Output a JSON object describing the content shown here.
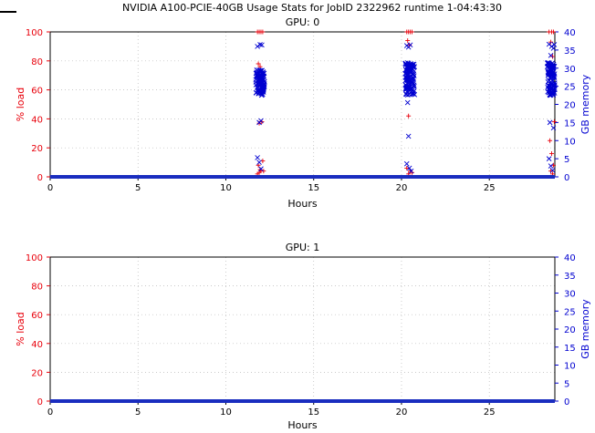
{
  "title": "NVIDIA A100-PCIE-40GB Usage Stats for JobID 2322962  runtime 1-04:43:30",
  "colors": {
    "load": "#e8000b",
    "memory": "#0000d0",
    "baseline": "#1a2dbf"
  },
  "chart_data": [
    {
      "type": "scatter",
      "subtitle": "GPU: 0",
      "xlabel": "Hours",
      "ylabel_left": "% load",
      "ylabel_right": "GB memory",
      "xlim": [
        0,
        28.73
      ],
      "ylim_left": [
        0,
        100
      ],
      "ylim_right": [
        0,
        40
      ],
      "x_ticks": [
        0,
        5,
        10,
        15,
        20,
        25
      ],
      "y_ticks_left": [
        0,
        20,
        40,
        60,
        80,
        100
      ],
      "y_ticks_right": [
        0,
        5,
        10,
        15,
        20,
        25,
        30,
        35,
        40
      ],
      "grid": true,
      "series": [
        {
          "marker": "plus",
          "axis": "left",
          "points": [
            [
              11.8,
              100
            ],
            [
              11.9,
              100
            ],
            [
              12.0,
              100
            ],
            [
              12.1,
              100
            ],
            [
              11.85,
              78
            ],
            [
              11.95,
              76
            ],
            [
              11.9,
              37
            ],
            [
              12.05,
              38
            ],
            [
              11.85,
              8
            ],
            [
              11.95,
              5
            ],
            [
              12.1,
              11
            ],
            [
              12.0,
              4
            ],
            [
              11.9,
              3
            ],
            [
              12.15,
              4
            ],
            [
              11.8,
              2
            ],
            [
              20.3,
              100
            ],
            [
              20.4,
              100
            ],
            [
              20.5,
              100
            ],
            [
              20.6,
              100
            ],
            [
              20.35,
              94
            ],
            [
              20.45,
              91
            ],
            [
              20.4,
              42
            ],
            [
              20.3,
              6
            ],
            [
              20.5,
              4
            ],
            [
              20.6,
              3
            ],
            [
              20.4,
              2
            ],
            [
              28.4,
              100
            ],
            [
              28.55,
              100
            ],
            [
              28.65,
              100
            ],
            [
              28.5,
              93
            ],
            [
              28.6,
              83
            ],
            [
              28.7,
              38
            ],
            [
              28.45,
              25
            ],
            [
              28.55,
              16
            ],
            [
              28.65,
              8
            ],
            [
              28.5,
              4
            ],
            [
              28.6,
              2
            ]
          ]
        },
        {
          "marker": "cross",
          "axis": "right",
          "points": [
            [
              11.8,
              36
            ],
            [
              11.95,
              36.5
            ],
            [
              12.05,
              36.4
            ],
            [
              11.9,
              15
            ],
            [
              12.0,
              15.5
            ],
            [
              11.8,
              5.3
            ],
            [
              11.9,
              4
            ],
            [
              12.0,
              2.2
            ],
            [
              20.3,
              36.2
            ],
            [
              20.4,
              35.8
            ],
            [
              20.5,
              36.4
            ],
            [
              20.35,
              20.5
            ],
            [
              20.4,
              11.2
            ],
            [
              20.3,
              3.6
            ],
            [
              20.45,
              2.4
            ],
            [
              20.55,
              1.6
            ],
            [
              28.4,
              36.6
            ],
            [
              28.55,
              36
            ],
            [
              28.65,
              35.5
            ],
            [
              28.7,
              36.5
            ],
            [
              28.5,
              33.5
            ],
            [
              28.6,
              30
            ],
            [
              28.45,
              15
            ],
            [
              28.65,
              13.5
            ],
            [
              28.4,
              5
            ],
            [
              28.5,
              3
            ],
            [
              28.6,
              1.8
            ]
          ],
          "clusters": [
            {
              "x_min": 11.7,
              "x_max": 12.2,
              "y_min": 22.5,
              "y_max": 29.5,
              "count": 110
            },
            {
              "x_min": 20.2,
              "x_max": 20.75,
              "y_min": 22.5,
              "y_max": 31.5,
              "count": 110
            },
            {
              "x_min": 28.3,
              "x_max": 28.73,
              "y_min": 22.5,
              "y_max": 31.5,
              "count": 110
            }
          ]
        },
        {
          "marker": "baseline",
          "axis": "left",
          "x_range": [
            0,
            28.73
          ],
          "value": 0
        }
      ]
    },
    {
      "type": "scatter",
      "subtitle": "GPU: 1",
      "xlabel": "Hours",
      "ylabel_left": "% load",
      "ylabel_right": "GB memory",
      "xlim": [
        0,
        28.73
      ],
      "ylim_left": [
        0,
        100
      ],
      "ylim_right": [
        0,
        40
      ],
      "x_ticks": [
        0,
        5,
        10,
        15,
        20,
        25
      ],
      "y_ticks_left": [
        0,
        20,
        40,
        60,
        80,
        100
      ],
      "y_ticks_right": [
        0,
        5,
        10,
        15,
        20,
        25,
        30,
        35,
        40
      ],
      "grid": true,
      "series": [
        {
          "marker": "baseline",
          "axis": "left",
          "x_range": [
            0,
            28.73
          ],
          "value": 0
        }
      ]
    }
  ]
}
